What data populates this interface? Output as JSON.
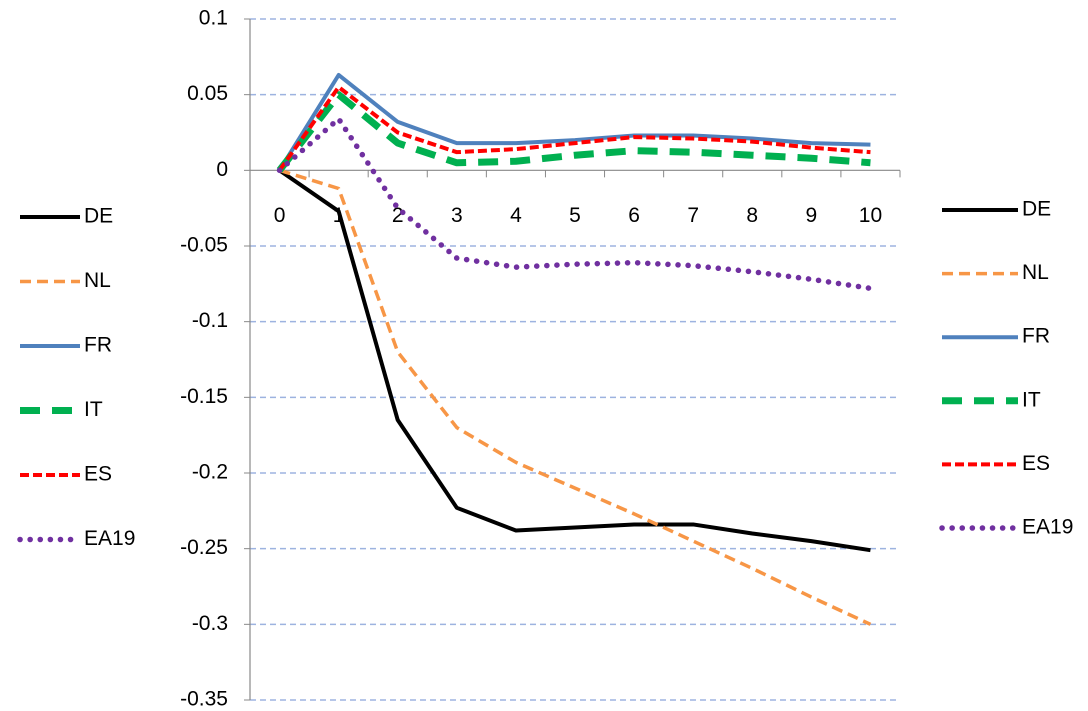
{
  "chart_data": {
    "type": "line",
    "categories": [
      "0",
      "1",
      "2",
      "3",
      "4",
      "5",
      "6",
      "7",
      "8",
      "9",
      "10"
    ],
    "ylim": [
      -0.35,
      0.1
    ],
    "yticks": [
      0.1,
      0.05,
      0,
      -0.05,
      -0.1,
      -0.15,
      -0.2,
      -0.25,
      -0.3,
      -0.35
    ],
    "grid": true,
    "legend": [
      "left",
      "right"
    ],
    "series": [
      {
        "name": "DE",
        "color": "#000000",
        "dash": "solid",
        "values": [
          0,
          -0.027,
          -0.165,
          -0.223,
          -0.238,
          -0.236,
          -0.234,
          -0.234,
          -0.24,
          -0.245,
          -0.251
        ]
      },
      {
        "name": "NL",
        "color": "#f79646",
        "dash": "dashed",
        "values": [
          0,
          -0.012,
          -0.12,
          -0.17,
          -0.193,
          -0.21,
          -0.227,
          -0.245,
          -0.263,
          -0.282,
          -0.3
        ]
      },
      {
        "name": "FR",
        "color": "#4f81bd",
        "dash": "solid",
        "values": [
          0,
          0.063,
          0.032,
          0.018,
          0.018,
          0.02,
          0.023,
          0.023,
          0.021,
          0.018,
          0.017
        ]
      },
      {
        "name": "IT",
        "color": "#00b050",
        "dash": "long-dash",
        "values": [
          0,
          0.05,
          0.018,
          0.005,
          0.006,
          0.01,
          0.013,
          0.012,
          0.01,
          0.008,
          0.005
        ]
      },
      {
        "name": "ES",
        "color": "#ff0000",
        "dash": "short-dash",
        "values": [
          0,
          0.055,
          0.025,
          0.012,
          0.014,
          0.018,
          0.022,
          0.021,
          0.019,
          0.015,
          0.012
        ]
      },
      {
        "name": "EA19",
        "color": "#7030a0",
        "dash": "dotted",
        "values": [
          0,
          0.034,
          -0.025,
          -0.058,
          -0.064,
          -0.062,
          -0.061,
          -0.063,
          -0.067,
          -0.072,
          -0.078
        ]
      }
    ]
  }
}
